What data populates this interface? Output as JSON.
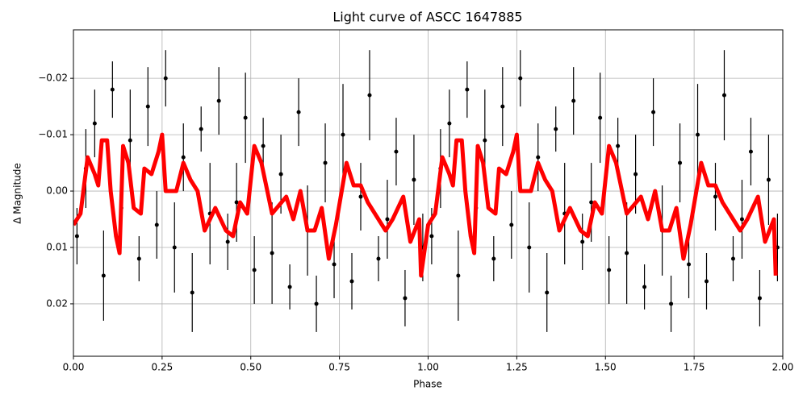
{
  "chart_data": {
    "type": "scatter",
    "title": "Light curve of ASCC 1647885",
    "xlabel": "Phase",
    "ylabel": "Δ Magnitude",
    "xlim": [
      0,
      2
    ],
    "ylim": [
      0.0293,
      -0.0286
    ],
    "grid": true,
    "xticks": [
      {
        "value": 0,
        "label": "0.00"
      },
      {
        "value": 0.25,
        "label": "0.25"
      },
      {
        "value": 0.5,
        "label": "0.50"
      },
      {
        "value": 0.75,
        "label": "0.75"
      },
      {
        "value": 1,
        "label": "1.00"
      },
      {
        "value": 1.25,
        "label": "1.25"
      },
      {
        "value": 1.5,
        "label": "1.50"
      },
      {
        "value": 1.75,
        "label": "1.75"
      },
      {
        "value": 2,
        "label": "2.00"
      }
    ],
    "yticks": [
      {
        "value": -0.02,
        "label": "−0.02"
      },
      {
        "value": -0.01,
        "label": "−0.01"
      },
      {
        "value": 0,
        "label": "0.00"
      },
      {
        "value": 0.01,
        "label": "0.01"
      },
      {
        "value": 0.02,
        "label": "0.02"
      }
    ],
    "series": [
      {
        "kind": "errorbar",
        "color": "#000000",
        "x": [
          0.01,
          0.035,
          0.06,
          0.085,
          0.11,
          0.135,
          0.16,
          0.185,
          0.21,
          0.235,
          0.26,
          0.285,
          0.31,
          0.335,
          0.36,
          0.385,
          0.41,
          0.435,
          0.46,
          0.485,
          0.51,
          0.535,
          0.56,
          0.585,
          0.61,
          0.635,
          0.66,
          0.685,
          0.71,
          0.735,
          0.76,
          0.785,
          0.81,
          0.835,
          0.86,
          0.885,
          0.91,
          0.935,
          0.96,
          0.985,
          1.01,
          1.035,
          1.06,
          1.085,
          1.11,
          1.135,
          1.16,
          1.185,
          1.21,
          1.235,
          1.26,
          1.285,
          1.31,
          1.335,
          1.36,
          1.385,
          1.41,
          1.435,
          1.46,
          1.485,
          1.51,
          1.535,
          1.56,
          1.585,
          1.61,
          1.635,
          1.66,
          1.685,
          1.71,
          1.735,
          1.76,
          1.785,
          1.81,
          1.835,
          1.86,
          1.885,
          1.91,
          1.935,
          1.96,
          1.985
        ],
        "values": [
          0.008,
          -0.004,
          -0.012,
          0.015,
          -0.018,
          0.003,
          -0.009,
          0.012,
          -0.015,
          0.006,
          -0.02,
          0.01,
          -0.006,
          0.018,
          -0.011,
          0.004,
          -0.016,
          0.009,
          0.002,
          -0.013,
          0.014,
          -0.008,
          0.011,
          -0.003,
          0.017,
          -0.014,
          0.007,
          0.02,
          -0.005,
          0.013,
          -0.01,
          0.016,
          0.001,
          -0.017,
          0.012,
          0.005,
          -0.007,
          0.019,
          -0.002,
          0.01,
          0.008,
          -0.004,
          -0.012,
          0.015,
          -0.018,
          0.003,
          -0.009,
          0.012,
          -0.015,
          0.006,
          -0.02,
          0.01,
          -0.006,
          0.018,
          -0.011,
          0.004,
          -0.016,
          0.009,
          0.002,
          -0.013,
          0.014,
          -0.008,
          0.011,
          -0.003,
          0.017,
          -0.014,
          0.007,
          0.02,
          -0.005,
          0.013,
          -0.01,
          0.016,
          0.001,
          -0.017,
          0.012,
          0.005,
          -0.007,
          0.019,
          -0.002,
          0.01
        ],
        "errors": [
          0.005,
          0.007,
          0.006,
          0.008,
          0.005,
          0.006,
          0.009,
          0.004,
          0.007,
          0.006,
          0.005,
          0.008,
          0.006,
          0.007,
          0.004,
          0.009,
          0.006,
          0.005,
          0.007,
          0.008,
          0.006,
          0.005,
          0.009,
          0.007,
          0.004,
          0.006,
          0.008,
          0.005,
          0.007,
          0.006,
          0.009,
          0.005,
          0.006,
          0.008,
          0.004,
          0.007,
          0.006,
          0.005,
          0.008,
          0.006,
          0.005,
          0.007,
          0.006,
          0.008,
          0.005,
          0.006,
          0.009,
          0.004,
          0.007,
          0.006,
          0.005,
          0.008,
          0.006,
          0.007,
          0.004,
          0.009,
          0.006,
          0.005,
          0.007,
          0.008,
          0.006,
          0.005,
          0.009,
          0.007,
          0.004,
          0.006,
          0.008,
          0.005,
          0.007,
          0.006,
          0.009,
          0.005,
          0.006,
          0.008,
          0.004,
          0.007,
          0.006,
          0.005,
          0.008,
          0.006
        ]
      },
      {
        "kind": "line",
        "color": "#ff0000",
        "x": [
          0,
          0.02,
          0.03,
          0.04,
          0.06,
          0.07,
          0.08,
          0.095,
          0.105,
          0.12,
          0.13,
          0.14,
          0.155,
          0.17,
          0.19,
          0.2,
          0.22,
          0.24,
          0.25,
          0.26,
          0.29,
          0.31,
          0.33,
          0.35,
          0.37,
          0.4,
          0.43,
          0.45,
          0.47,
          0.49,
          0.51,
          0.53,
          0.56,
          0.6,
          0.62,
          0.64,
          0.66,
          0.68,
          0.7,
          0.72,
          0.74,
          0.77,
          0.79,
          0.81,
          0.83,
          0.85,
          0.88,
          0.9,
          0.93,
          0.95,
          0.975,
          0.98,
          1,
          1.02,
          1.03,
          1.04,
          1.06,
          1.07,
          1.08,
          1.095,
          1.105,
          1.12,
          1.13,
          1.14,
          1.155,
          1.17,
          1.19,
          1.2,
          1.22,
          1.24,
          1.25,
          1.26,
          1.29,
          1.31,
          1.33,
          1.35,
          1.37,
          1.4,
          1.43,
          1.45,
          1.47,
          1.49,
          1.51,
          1.53,
          1.56,
          1.6,
          1.62,
          1.64,
          1.66,
          1.68,
          1.7,
          1.72,
          1.74,
          1.77,
          1.79,
          1.81,
          1.83,
          1.85,
          1.88,
          1.9,
          1.93,
          1.95,
          1.975,
          1.98
        ],
        "values": [
          0.006,
          0.004,
          -0.001,
          -0.006,
          -0.003,
          -0.001,
          -0.009,
          -0.009,
          0,
          0.008,
          0.011,
          -0.008,
          -0.005,
          0.003,
          0.004,
          -0.004,
          -0.003,
          -0.007,
          -0.01,
          0,
          0,
          -0.005,
          -0.002,
          0,
          0.007,
          0.003,
          0.007,
          0.008,
          0.002,
          0.004,
          -0.008,
          -0.005,
          0.004,
          0.001,
          0.005,
          0,
          0.007,
          0.007,
          0.003,
          0.012,
          0.006,
          -0.005,
          -0.001,
          -0.001,
          0.002,
          0.004,
          0.007,
          0.005,
          0.001,
          0.009,
          0.005,
          0.015,
          0.006,
          0.004,
          -0.001,
          -0.006,
          -0.003,
          -0.001,
          -0.009,
          -0.009,
          0,
          0.008,
          0.011,
          -0.008,
          -0.005,
          0.003,
          0.004,
          -0.004,
          -0.003,
          -0.007,
          -0.01,
          0,
          0,
          -0.005,
          -0.002,
          0,
          0.007,
          0.003,
          0.007,
          0.008,
          0.002,
          0.004,
          -0.008,
          -0.005,
          0.004,
          0.001,
          0.005,
          0,
          0.007,
          0.007,
          0.003,
          0.012,
          0.006,
          -0.005,
          -0.001,
          -0.001,
          0.002,
          0.004,
          0.007,
          0.005,
          0.001,
          0.009,
          0.005,
          0.015
        ]
      }
    ]
  }
}
